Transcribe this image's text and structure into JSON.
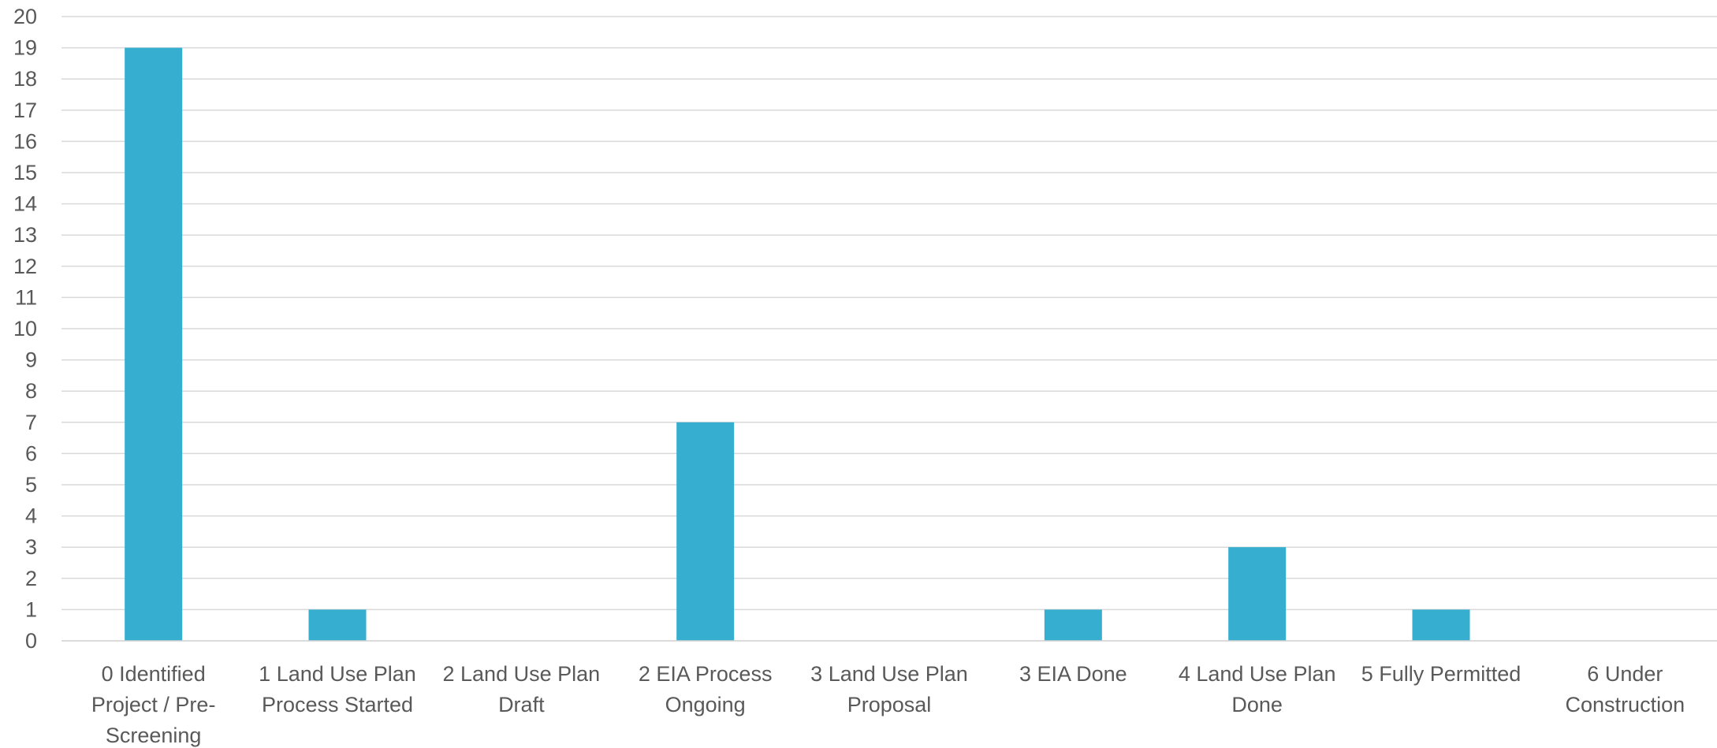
{
  "chart_data": {
    "type": "bar",
    "title": "",
    "xlabel": "",
    "ylabel": "",
    "ylim": [
      0,
      20
    ],
    "y_ticks": [
      0,
      1,
      2,
      3,
      4,
      5,
      6,
      7,
      8,
      9,
      10,
      11,
      12,
      13,
      14,
      15,
      16,
      17,
      18,
      19,
      20
    ],
    "grid": true,
    "legend": "none",
    "categories": [
      [
        "0 Identified",
        "Project / Pre-",
        "Screening"
      ],
      [
        "1 Land Use Plan",
        "Process Started"
      ],
      [
        "2 Land Use Plan",
        "Draft"
      ],
      [
        "2 EIA Process",
        "Ongoing"
      ],
      [
        "3 Land Use Plan",
        "Proposal"
      ],
      [
        "3 EIA Done"
      ],
      [
        "4 Land Use Plan",
        "Done"
      ],
      [
        "5 Fully Permitted"
      ],
      [
        "6 Under",
        "Construction"
      ]
    ],
    "values": [
      19,
      1,
      0,
      7,
      0,
      1,
      3,
      1,
      0
    ],
    "colors": {
      "bar": "#36AECF",
      "grid": "#D9D9D9",
      "text": "#595959"
    }
  }
}
